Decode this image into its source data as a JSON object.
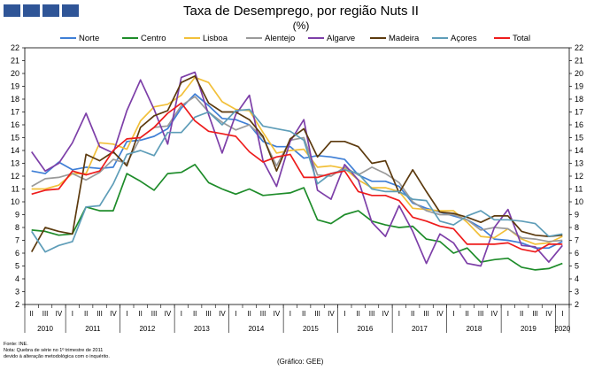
{
  "header": {
    "title": "Taxa de Desemprego, por região Nuts II",
    "subtitle": "(%)"
  },
  "footer": {
    "source": "Fonte: INE.",
    "note1": "Nota: Quebra de série no 1º trimestre de 2011",
    "note2": "devido à alteração metodológica com o inquérito.",
    "credit": "(Gráfico: GEE)"
  },
  "colors": {
    "Norte": "#3f7fd6",
    "Centro": "#1e8c2a",
    "Lisboa": "#f2c03a",
    "Alentejo": "#9a9a9a",
    "Algarve": "#7d3fa8",
    "Madeira": "#5c3a0e",
    "Açores": "#5e9db8",
    "Total": "#ee1c1c",
    "logo": "#2f5597"
  },
  "chart_data": {
    "type": "line",
    "ylim": [
      2,
      22
    ],
    "yticks": [
      2,
      3,
      4,
      5,
      6,
      7,
      8,
      9,
      10,
      11,
      12,
      13,
      14,
      15,
      16,
      17,
      18,
      19,
      20,
      21,
      22
    ],
    "quarter_labels": [
      "II",
      "III",
      "IV",
      "I",
      "II",
      "III",
      "IV",
      "I",
      "II",
      "III",
      "IV",
      "I",
      "II",
      "III",
      "IV",
      "I",
      "II",
      "III",
      "IV",
      "I",
      "II",
      "III",
      "IV",
      "I",
      "II",
      "III",
      "IV",
      "I",
      "II",
      "III",
      "IV",
      "I",
      "II",
      "III",
      "IV",
      "I",
      "II",
      "III",
      "IV",
      "I"
    ],
    "year_labels": [
      {
        "label": "2010",
        "from": 0,
        "to": 2
      },
      {
        "label": "2011",
        "from": 3,
        "to": 6
      },
      {
        "label": "2012",
        "from": 7,
        "to": 10
      },
      {
        "label": "2013",
        "from": 11,
        "to": 14
      },
      {
        "label": "2014",
        "from": 15,
        "to": 18
      },
      {
        "label": "2015",
        "from": 19,
        "to": 22
      },
      {
        "label": "2016",
        "from": 23,
        "to": 26
      },
      {
        "label": "2017",
        "from": 27,
        "to": 30
      },
      {
        "label": "2018",
        "from": 31,
        "to": 34
      },
      {
        "label": "2019",
        "from": 35,
        "to": 38
      },
      {
        "label": "2020",
        "from": 39,
        "to": 39
      }
    ],
    "series": [
      {
        "name": "Norte",
        "values": [
          12.4,
          12.2,
          13.1,
          12.5,
          12.7,
          12.6,
          12.7,
          14.7,
          14.8,
          15.1,
          15.7,
          17.3,
          18.4,
          17.5,
          16.5,
          16.4,
          16.0,
          14.7,
          14.3,
          14.3,
          13.4,
          13.6,
          13.5,
          13.3,
          12.1,
          11.6,
          11.6,
          11.2,
          9.9,
          9.5,
          9.2,
          8.9,
          8.6,
          8.0,
          7.1,
          7.0,
          6.8,
          6.4,
          6.4,
          6.9
        ]
      },
      {
        "name": "Centro",
        "values": [
          7.8,
          7.7,
          7.4,
          7.5,
          9.6,
          9.3,
          9.3,
          12.2,
          11.6,
          10.9,
          12.2,
          12.3,
          12.9,
          11.5,
          11.0,
          10.6,
          11.0,
          10.5,
          10.6,
          10.7,
          11.1,
          8.6,
          8.3,
          9.0,
          9.3,
          8.5,
          8.2,
          8.0,
          8.1,
          7.1,
          6.9,
          6.0,
          6.4,
          5.3,
          5.5,
          5.6,
          4.9,
          4.7,
          4.8,
          5.2
        ]
      },
      {
        "name": "Lisboa",
        "values": [
          11.0,
          11.0,
          11.3,
          12.2,
          12.2,
          14.6,
          14.5,
          14.1,
          16.3,
          17.4,
          17.6,
          18.3,
          19.7,
          19.3,
          17.8,
          17.2,
          17.1,
          15.4,
          13.8,
          14.0,
          14.1,
          12.7,
          12.8,
          12.6,
          11.7,
          11.1,
          11.1,
          10.8,
          9.5,
          9.4,
          9.3,
          9.3,
          8.4,
          7.3,
          7.2,
          7.9,
          7.1,
          6.7,
          6.8,
          7.3
        ]
      },
      {
        "name": "Alentejo",
        "values": [
          11.2,
          11.8,
          11.9,
          12.2,
          11.7,
          12.3,
          13.3,
          13.0,
          15.0,
          15.8,
          15.9,
          17.5,
          18.2,
          17.0,
          16.2,
          15.6,
          16.0,
          15.0,
          12.8,
          14.8,
          15.0,
          12.1,
          12.0,
          12.7,
          12.1,
          12.7,
          12.2,
          11.5,
          10.0,
          9.3,
          9.0,
          9.0,
          8.6,
          7.8,
          8.0,
          7.9,
          7.2,
          7.1,
          6.9,
          7.0
        ]
      },
      {
        "name": "Algarve",
        "values": [
          13.9,
          12.4,
          13.0,
          14.6,
          16.9,
          14.3,
          13.8,
          17.1,
          19.5,
          17.2,
          14.5,
          19.7,
          20.1,
          16.8,
          13.8,
          16.8,
          18.3,
          13.2,
          11.2,
          14.7,
          16.4,
          10.9,
          10.2,
          12.9,
          11.7,
          8.4,
          7.3,
          9.7,
          7.7,
          5.2,
          7.5,
          6.8,
          5.2,
          5.0,
          8.0,
          9.4,
          6.6,
          6.5,
          5.3,
          6.6
        ]
      },
      {
        "name": "Madeira",
        "values": [
          6.1,
          8.0,
          7.7,
          7.5,
          13.7,
          13.2,
          13.9,
          12.8,
          15.8,
          16.7,
          17.1,
          19.3,
          19.8,
          17.7,
          17.0,
          17.0,
          16.4,
          15.1,
          12.4,
          14.9,
          15.7,
          13.5,
          14.7,
          14.7,
          14.3,
          13.0,
          13.2,
          10.7,
          12.5,
          10.8,
          9.2,
          9.1,
          8.8,
          8.4,
          8.9,
          8.9,
          7.7,
          7.4,
          7.3,
          7.4
        ]
      },
      {
        "name": "Açores",
        "values": [
          7.7,
          6.1,
          6.6,
          6.9,
          9.6,
          9.7,
          11.4,
          13.7,
          14.0,
          13.6,
          15.4,
          15.4,
          16.6,
          17.0,
          16.0,
          17.1,
          17.2,
          15.9,
          15.7,
          15.5,
          14.8,
          11.4,
          12.2,
          12.5,
          12.2,
          11.0,
          10.8,
          10.8,
          10.2,
          10.1,
          8.5,
          8.2,
          8.9,
          9.3,
          8.6,
          8.6,
          8.5,
          8.3,
          7.3,
          7.5
        ]
      },
      {
        "name": "Total",
        "values": [
          10.6,
          10.9,
          11.0,
          12.4,
          12.1,
          12.4,
          14.0,
          14.9,
          15.0,
          15.8,
          16.9,
          17.7,
          16.3,
          15.5,
          15.3,
          15.1,
          13.9,
          13.1,
          13.5,
          13.7,
          11.9,
          11.9,
          12.2,
          12.4,
          10.8,
          10.5,
          10.5,
          10.1,
          8.8,
          8.5,
          8.1,
          7.9,
          6.7,
          6.7,
          6.7,
          6.8,
          6.3,
          6.1,
          6.7,
          6.7
        ]
      }
    ]
  }
}
